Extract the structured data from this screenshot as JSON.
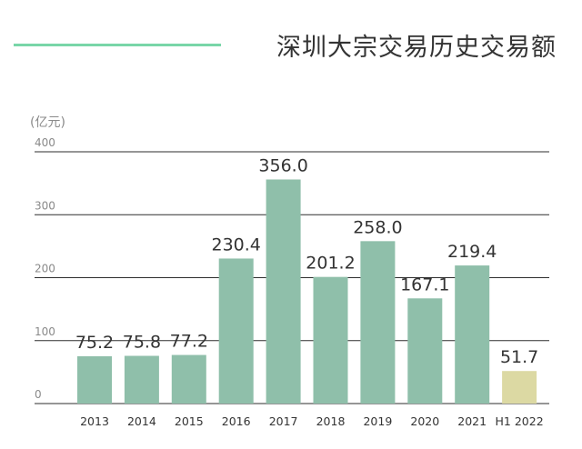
{
  "header": {
    "title": "深圳大宗交易历史交易额"
  },
  "colors": {
    "accent_line": "#79d6a8",
    "bar": "#8fbfaa",
    "bar_highlight": "#dcd9a3",
    "gridline": "#2e2e2e",
    "text": "#333333",
    "axis_text": "#8a8a8a"
  },
  "chart_data": {
    "type": "bar",
    "title": "深圳大宗交易历史交易额",
    "unit": "(亿元)",
    "xlabel": "",
    "ylabel": "",
    "categories": [
      "2013",
      "2014",
      "2015",
      "2016",
      "2017",
      "2018",
      "2019",
      "2020",
      "2021",
      "H1 2022"
    ],
    "values": [
      75.2,
      75.8,
      77.2,
      230.4,
      356.0,
      201.2,
      258.0,
      167.1,
      219.4,
      51.7
    ],
    "value_labels": [
      "75.2",
      "75.8",
      "77.2",
      "230.4",
      "356.0",
      "201.2",
      "258.0",
      "167.1",
      "219.4",
      "51.7"
    ],
    "highlight_categories": [
      "H1 2022"
    ],
    "ylim": [
      0,
      400
    ],
    "yticks": [
      0,
      100,
      200,
      300,
      400
    ],
    "ytick_labels": [
      "0",
      "100",
      "200",
      "300",
      "400"
    ],
    "grid": true,
    "legend": "none"
  }
}
